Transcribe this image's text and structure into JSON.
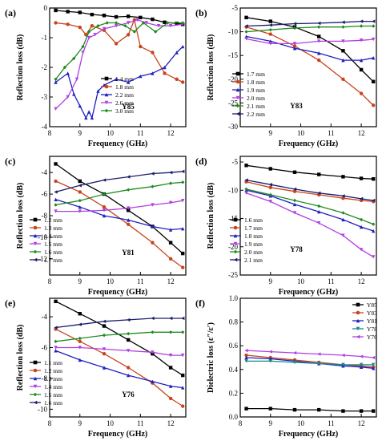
{
  "chart_data": [
    {
      "panel": "(a)",
      "type": "line",
      "xlabel": "Frequency (GHz)",
      "ylabel": "Reflection loss (dB)",
      "xlim": [
        8.0,
        12.5
      ],
      "ylim": [
        -4.0,
        0.0
      ],
      "xticks": [
        8,
        9,
        10,
        11,
        12
      ],
      "yticks": [
        -4,
        -3,
        -2,
        -1,
        0
      ],
      "annotation": "Y85",
      "legend_position": "bottom-right",
      "series": [
        {
          "name": "1.4 mm",
          "color": "#000000",
          "marker": "square",
          "x": [
            8.2,
            8.6,
            9.0,
            9.4,
            9.8,
            10.2,
            10.6,
            11.0,
            11.4,
            11.8,
            12.2,
            12.4
          ],
          "y": [
            -0.08,
            -0.12,
            -0.15,
            -0.22,
            -0.25,
            -0.3,
            -0.28,
            -0.32,
            -0.38,
            -0.48,
            -0.52,
            -0.55
          ]
        },
        {
          "name": "1.8 mm",
          "color": "#c8441c",
          "marker": "circle",
          "x": [
            8.2,
            8.6,
            9.0,
            9.2,
            9.4,
            9.8,
            10.2,
            10.6,
            10.8,
            11.0,
            11.4,
            11.8,
            12.2,
            12.4
          ],
          "y": [
            -0.5,
            -0.55,
            -0.65,
            -0.9,
            -0.6,
            -0.75,
            -1.2,
            -0.9,
            -0.4,
            -1.3,
            -1.5,
            -2.2,
            -2.4,
            -2.5
          ]
        },
        {
          "name": "2.2 mm",
          "color": "#1f1fbf",
          "marker": "triangle-up",
          "x": [
            8.2,
            8.6,
            8.8,
            9.0,
            9.2,
            9.3,
            9.4,
            9.6,
            9.8,
            10.2,
            10.6,
            11.0,
            11.4,
            11.8,
            12.2,
            12.4
          ],
          "y": [
            -2.5,
            -2.2,
            -2.9,
            -3.3,
            -3.7,
            -3.5,
            -3.7,
            -2.8,
            -2.6,
            -2.4,
            -2.5,
            -2.3,
            -2.2,
            -2.0,
            -1.5,
            -1.3
          ]
        },
        {
          "name": "2.6 mm",
          "color": "#b040e0",
          "marker": "triangle-down",
          "x": [
            8.2,
            8.6,
            8.9,
            9.1,
            9.3,
            9.5,
            9.8,
            10.2,
            10.6,
            10.9,
            11.2,
            11.6,
            12.0,
            12.4
          ],
          "y": [
            -3.4,
            -3.0,
            -2.4,
            -1.5,
            -1.0,
            -0.9,
            -0.7,
            -0.6,
            -0.5,
            -0.4,
            -0.5,
            -0.6,
            -0.6,
            -0.55
          ]
        },
        {
          "name": "3.0 mm",
          "color": "#1f8c1f",
          "marker": "diamond",
          "x": [
            8.2,
            8.5,
            8.8,
            9.1,
            9.3,
            9.6,
            9.9,
            10.2,
            10.5,
            10.8,
            11.1,
            11.5,
            11.9,
            12.4
          ],
          "y": [
            -2.4,
            -2.0,
            -1.7,
            -1.3,
            -0.8,
            -0.6,
            -0.5,
            -0.5,
            -0.6,
            -0.8,
            -0.5,
            -0.8,
            -0.5,
            -0.5
          ]
        }
      ]
    },
    {
      "panel": "(b)",
      "type": "line",
      "xlabel": "Frequency (GHz)",
      "ylabel": "Reflection loss (dB)",
      "xlim": [
        8.0,
        12.5
      ],
      "ylim": [
        -30,
        -5
      ],
      "xticks": [
        9,
        10,
        11,
        12
      ],
      "yticks": [
        -30,
        -25,
        -20,
        -15,
        -10,
        -5
      ],
      "annotation": "Y83",
      "legend_position": "bottom-left",
      "series": [
        {
          "name": "1.7 mm",
          "color": "#000000",
          "marker": "square",
          "x": [
            8.2,
            9.0,
            9.8,
            10.6,
            11.4,
            12.0,
            12.4
          ],
          "y": [
            -7.0,
            -7.8,
            -9.0,
            -11.0,
            -14.0,
            -18.0,
            -20.5
          ]
        },
        {
          "name": "1.8 mm",
          "color": "#c8441c",
          "marker": "circle",
          "x": [
            8.2,
            9.0,
            9.8,
            10.6,
            11.4,
            12.0,
            12.4
          ],
          "y": [
            -9.0,
            -10.5,
            -13.0,
            -16.0,
            -20.0,
            -23.0,
            -25.5
          ]
        },
        {
          "name": "1.9 mm",
          "color": "#1f1fbf",
          "marker": "triangle-up",
          "x": [
            8.2,
            9.0,
            9.8,
            10.6,
            11.4,
            12.0,
            12.4
          ],
          "y": [
            -11.0,
            -12.0,
            -13.5,
            -14.5,
            -16.0,
            -16.0,
            -15.5
          ]
        },
        {
          "name": "2.0 mm",
          "color": "#b040e0",
          "marker": "triangle-down",
          "x": [
            8.2,
            9.0,
            9.8,
            10.6,
            11.4,
            12.0,
            12.4
          ],
          "y": [
            -11.5,
            -12.5,
            -12.5,
            -12.0,
            -12.0,
            -11.8,
            -11.6
          ]
        },
        {
          "name": "2.1 mm",
          "color": "#1f8c1f",
          "marker": "diamond",
          "x": [
            8.2,
            9.0,
            9.8,
            10.6,
            11.4,
            12.0,
            12.4
          ],
          "y": [
            -10.0,
            -9.6,
            -9.2,
            -9.0,
            -9.0,
            -8.8,
            -8.8
          ]
        },
        {
          "name": "2.2 mm",
          "color": "#1c1c6e",
          "marker": "triangle-left",
          "x": [
            8.2,
            9.0,
            9.8,
            10.6,
            11.4,
            12.0,
            12.4
          ],
          "y": [
            -8.8,
            -8.6,
            -8.3,
            -8.2,
            -8.0,
            -7.8,
            -7.8
          ]
        }
      ]
    },
    {
      "panel": "(c)",
      "type": "line",
      "xlabel": "Frequency (GHz)",
      "ylabel": "Reflection loss (dB)",
      "xlim": [
        8.0,
        12.5
      ],
      "ylim": [
        -13.5,
        -2.5
      ],
      "xticks": [
        8,
        9,
        10,
        11,
        12
      ],
      "yticks": [
        -12,
        -10,
        -8,
        -6,
        -4
      ],
      "annotation": "Y81",
      "legend_position": "bottom-left",
      "series": [
        {
          "name": "1.2 mm",
          "color": "#000000",
          "marker": "square",
          "x": [
            8.2,
            9.0,
            9.8,
            10.6,
            11.4,
            12.0,
            12.4
          ],
          "y": [
            -3.2,
            -4.8,
            -6.0,
            -7.5,
            -9.0,
            -10.5,
            -11.5
          ]
        },
        {
          "name": "1.3 mm",
          "color": "#c8441c",
          "marker": "circle",
          "x": [
            8.2,
            9.0,
            9.8,
            10.6,
            11.4,
            12.0,
            12.4
          ],
          "y": [
            -4.8,
            -5.8,
            -7.2,
            -8.8,
            -10.5,
            -12.0,
            -12.8
          ]
        },
        {
          "name": "1.4 mm",
          "color": "#1f1fbf",
          "marker": "triangle-up",
          "x": [
            8.2,
            9.0,
            9.8,
            10.6,
            11.4,
            12.0,
            12.4
          ],
          "y": [
            -6.5,
            -7.2,
            -8.0,
            -8.4,
            -9.0,
            -9.3,
            -9.2
          ]
        },
        {
          "name": "1.5 mm",
          "color": "#b040e0",
          "marker": "triangle-down",
          "x": [
            8.2,
            9.0,
            9.8,
            10.6,
            11.4,
            12.0,
            12.4
          ],
          "y": [
            -7.6,
            -7.6,
            -7.5,
            -7.3,
            -7.0,
            -6.8,
            -6.6
          ]
        },
        {
          "name": "1.6 mm",
          "color": "#1f8c1f",
          "marker": "diamond",
          "x": [
            8.2,
            9.0,
            9.8,
            10.6,
            11.4,
            12.0,
            12.4
          ],
          "y": [
            -7.0,
            -6.6,
            -6.0,
            -5.6,
            -5.3,
            -5.0,
            -4.9
          ]
        },
        {
          "name": "1.7 mm",
          "color": "#1c1c6e",
          "marker": "triangle-left",
          "x": [
            8.2,
            9.0,
            9.8,
            10.6,
            11.4,
            12.0,
            12.4
          ],
          "y": [
            -5.8,
            -5.2,
            -4.7,
            -4.4,
            -4.1,
            -4.0,
            -3.9
          ]
        }
      ]
    },
    {
      "panel": "(d)",
      "type": "line",
      "xlabel": "Frequency (GHz)",
      "ylabel": "Reflection loss (dB)",
      "xlim": [
        8.0,
        12.5
      ],
      "ylim": [
        -25,
        -4
      ],
      "xticks": [
        9,
        10,
        11,
        12
      ],
      "yticks": [
        -25,
        -20,
        -15,
        -10,
        -5
      ],
      "annotation": "Y78",
      "legend_position": "bottom-left",
      "series": [
        {
          "name": "1.6 mm",
          "color": "#000000",
          "marker": "square",
          "x": [
            8.2,
            9.0,
            9.8,
            10.6,
            11.4,
            12.0,
            12.4
          ],
          "y": [
            -5.6,
            -6.2,
            -6.8,
            -7.2,
            -7.6,
            -7.9,
            -8.0
          ]
        },
        {
          "name": "1.7 mm",
          "color": "#c8441c",
          "marker": "circle",
          "x": [
            8.2,
            9.0,
            9.8,
            10.6,
            11.4,
            12.0,
            12.4
          ],
          "y": [
            -8.5,
            -9.5,
            -10.2,
            -10.8,
            -11.4,
            -11.8,
            -12.0
          ]
        },
        {
          "name": "1.8 mm",
          "color": "#1f1fbf",
          "marker": "triangle-up",
          "x": [
            8.2,
            9.0,
            9.8,
            10.6,
            11.4,
            12.0,
            12.4
          ],
          "y": [
            -10.0,
            -11.0,
            -12.5,
            -13.8,
            -15.2,
            -16.5,
            -17.2
          ]
        },
        {
          "name": "1.9 mm",
          "color": "#b040e0",
          "marker": "triangle-down",
          "x": [
            8.2,
            9.0,
            9.8,
            10.6,
            11.4,
            12.0,
            12.4
          ],
          "y": [
            -10.5,
            -12.0,
            -14.0,
            -15.8,
            -18.0,
            -20.5,
            -21.8
          ]
        },
        {
          "name": "2.0 mm",
          "color": "#1f8c1f",
          "marker": "diamond",
          "x": [
            8.2,
            9.0,
            9.8,
            10.6,
            11.4,
            12.0,
            12.4
          ],
          "y": [
            -9.8,
            -10.8,
            -11.8,
            -12.8,
            -14.0,
            -15.2,
            -16.0
          ]
        },
        {
          "name": "2.1 mm",
          "color": "#1c1c6e",
          "marker": "triangle-left",
          "x": [
            8.2,
            9.0,
            9.8,
            10.6,
            11.4,
            12.0,
            12.4
          ],
          "y": [
            -8.2,
            -9.0,
            -9.8,
            -10.5,
            -11.0,
            -11.5,
            -11.8
          ]
        }
      ]
    },
    {
      "panel": "(e)",
      "type": "line",
      "xlabel": "Frequency (GHz)",
      "ylabel": "Reflection loss (dB)",
      "xlim": [
        8.0,
        12.5
      ],
      "ylim": [
        -10.5,
        -2.8
      ],
      "xticks": [
        8,
        9,
        10,
        11,
        12
      ],
      "yticks": [
        -10,
        -8,
        -6,
        -4
      ],
      "annotation": "Y76",
      "legend_position": "bottom-left",
      "series": [
        {
          "name": "1.1 mm",
          "color": "#000000",
          "marker": "square",
          "x": [
            8.2,
            9.0,
            9.8,
            10.6,
            11.4,
            12.0,
            12.4
          ],
          "y": [
            -3.0,
            -3.8,
            -4.6,
            -5.5,
            -6.4,
            -7.3,
            -7.8
          ]
        },
        {
          "name": "1.2 mm",
          "color": "#c8441c",
          "marker": "circle",
          "x": [
            8.2,
            9.0,
            9.8,
            10.6,
            11.4,
            12.0,
            12.4
          ],
          "y": [
            -4.8,
            -5.6,
            -6.4,
            -7.3,
            -8.3,
            -9.3,
            -9.8
          ]
        },
        {
          "name": "1.3 mm",
          "color": "#1f1fbf",
          "marker": "triangle-up",
          "x": [
            8.2,
            9.0,
            9.8,
            10.6,
            11.4,
            12.0,
            12.4
          ],
          "y": [
            -6.2,
            -6.8,
            -7.3,
            -7.8,
            -8.2,
            -8.5,
            -8.6
          ]
        },
        {
          "name": "1.4 mm",
          "color": "#b040e0",
          "marker": "triangle-down",
          "x": [
            8.2,
            9.0,
            9.8,
            10.6,
            11.4,
            12.0,
            12.4
          ],
          "y": [
            -6.0,
            -6.0,
            -6.1,
            -6.2,
            -6.3,
            -6.5,
            -6.5
          ]
        },
        {
          "name": "1.5 mm",
          "color": "#1f8c1f",
          "marker": "diamond",
          "x": [
            8.2,
            9.0,
            9.8,
            10.6,
            11.4,
            12.0,
            12.4
          ],
          "y": [
            -5.6,
            -5.4,
            -5.2,
            -5.1,
            -5.0,
            -5.0,
            -5.0
          ]
        },
        {
          "name": "1.6 mm",
          "color": "#1c1c6e",
          "marker": "triangle-left",
          "x": [
            8.2,
            9.0,
            9.8,
            10.6,
            11.4,
            12.0,
            12.4
          ],
          "y": [
            -4.7,
            -4.5,
            -4.3,
            -4.2,
            -4.1,
            -4.1,
            -4.1
          ]
        }
      ]
    },
    {
      "panel": "(f)",
      "type": "line",
      "xlabel": "Frequency (GHz)",
      "ylabel": "Dielectric loss (ε″/ε′)",
      "xlim": [
        8.0,
        12.5
      ],
      "ylim": [
        0.0,
        1.0
      ],
      "xticks": [
        8,
        9,
        10,
        11,
        12
      ],
      "yticks": [
        0.0,
        0.2,
        0.4,
        0.6,
        0.8,
        1.0
      ],
      "ytick_labels": [
        "0.0",
        "0.2",
        "0.4",
        "0.6",
        "0.8",
        "1.0"
      ],
      "legend_position": "top-right",
      "series": [
        {
          "name": "Y85",
          "color": "#000000",
          "marker": "square",
          "x": [
            8.2,
            9.0,
            9.8,
            10.6,
            11.4,
            12.0,
            12.4
          ],
          "y": [
            0.07,
            0.07,
            0.06,
            0.06,
            0.05,
            0.05,
            0.05
          ]
        },
        {
          "name": "Y83",
          "color": "#c8441c",
          "marker": "circle",
          "x": [
            8.2,
            9.0,
            9.8,
            10.6,
            11.4,
            12.0,
            12.4
          ],
          "y": [
            0.52,
            0.5,
            0.48,
            0.46,
            0.44,
            0.43,
            0.42
          ]
        },
        {
          "name": "Y81",
          "color": "#1f1fbf",
          "marker": "triangle-up",
          "x": [
            8.2,
            9.0,
            9.8,
            10.6,
            11.4,
            12.0,
            12.4
          ],
          "y": [
            0.5,
            0.49,
            0.47,
            0.45,
            0.43,
            0.42,
            0.41
          ]
        },
        {
          "name": "Y78",
          "color": "#108c8c",
          "marker": "triangle-down",
          "x": [
            8.2,
            9.0,
            9.8,
            10.6,
            11.4,
            12.0,
            12.4
          ],
          "y": [
            0.47,
            0.47,
            0.46,
            0.45,
            0.44,
            0.44,
            0.44
          ]
        },
        {
          "name": "Y76",
          "color": "#b040e0",
          "marker": "triangle-left",
          "x": [
            8.2,
            9.0,
            9.8,
            10.6,
            11.4,
            12.0,
            12.4
          ],
          "y": [
            0.56,
            0.55,
            0.54,
            0.53,
            0.52,
            0.51,
            0.5
          ]
        }
      ]
    }
  ]
}
